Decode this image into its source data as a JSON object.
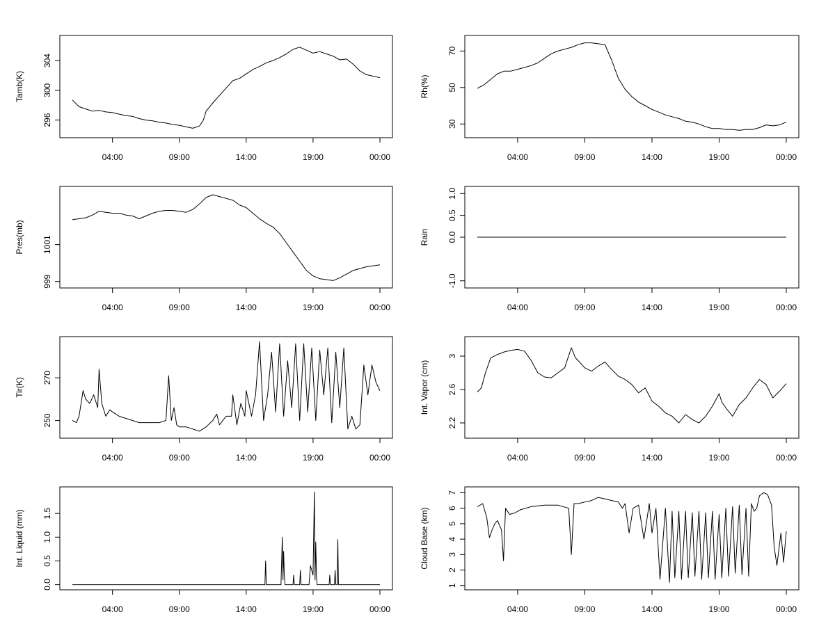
{
  "chart_data": [
    {
      "type": "line",
      "ylabel": "Tamb(K)",
      "xlim": [
        1,
        24
      ],
      "ylim": [
        294,
        307
      ],
      "yticks": [
        296,
        300,
        304
      ],
      "xticks": [
        4,
        9,
        14,
        19,
        24
      ],
      "xticklabels": [
        "04:00",
        "09:00",
        "14:00",
        "19:00",
        "00:00"
      ],
      "x": [
        1.0,
        1.5,
        2.0,
        2.5,
        3.0,
        3.5,
        4.0,
        4.5,
        5.0,
        5.5,
        6.0,
        6.5,
        7.0,
        7.5,
        8.0,
        8.5,
        9.0,
        9.5,
        10.0,
        10.5,
        10.8,
        11.0,
        11.5,
        12.0,
        12.5,
        13.0,
        13.5,
        14.0,
        14.5,
        15.0,
        15.5,
        16.0,
        16.5,
        17.0,
        17.5,
        18.0,
        18.5,
        19.0,
        19.5,
        20.0,
        20.5,
        21.0,
        21.5,
        22.0,
        22.5,
        23.0,
        23.5,
        24.0
      ],
      "y": [
        298.7,
        297.8,
        297.5,
        297.2,
        297.3,
        297.1,
        297.0,
        296.8,
        296.6,
        296.5,
        296.2,
        296.0,
        295.9,
        295.7,
        295.6,
        295.4,
        295.3,
        295.1,
        294.9,
        295.2,
        296.0,
        297.2,
        298.3,
        299.3,
        300.3,
        301.3,
        301.6,
        302.2,
        302.8,
        303.2,
        303.7,
        304.0,
        304.4,
        304.9,
        305.5,
        305.8,
        305.4,
        305.0,
        305.2,
        304.9,
        304.6,
        304.1,
        304.2,
        303.5,
        302.6,
        302.1,
        301.9,
        301.7
      ]
    },
    {
      "type": "line",
      "ylabel": "Rh(%)",
      "xlim": [
        1,
        24
      ],
      "ylim": [
        24,
        77
      ],
      "yticks": [
        30,
        50,
        70
      ],
      "xticks": [
        4,
        9,
        14,
        19,
        24
      ],
      "xticklabels": [
        "04:00",
        "09:00",
        "14:00",
        "19:00",
        "00:00"
      ],
      "x": [
        1.0,
        1.5,
        2.0,
        2.5,
        3.0,
        3.5,
        4.0,
        4.5,
        5.0,
        5.5,
        6.0,
        6.5,
        7.0,
        7.5,
        8.0,
        8.5,
        9.0,
        9.5,
        10.0,
        10.5,
        11.0,
        11.5,
        12.0,
        12.5,
        13.0,
        13.5,
        14.0,
        14.5,
        15.0,
        15.5,
        16.0,
        16.5,
        17.0,
        17.5,
        18.0,
        18.5,
        19.0,
        19.5,
        20.0,
        20.5,
        21.0,
        21.5,
        22.0,
        22.5,
        23.0,
        23.5,
        24.0
      ],
      "y": [
        49.5,
        51.5,
        54.5,
        57.5,
        59.0,
        59.0,
        60.0,
        61.0,
        62.0,
        63.5,
        66.0,
        68.5,
        70.0,
        71.0,
        72.0,
        73.5,
        74.5,
        74.5,
        74.0,
        73.5,
        65.0,
        55.0,
        49.0,
        45.0,
        42.0,
        40.0,
        38.0,
        36.5,
        35.0,
        34.0,
        33.0,
        31.5,
        31.0,
        30.0,
        28.5,
        27.5,
        27.5,
        27.0,
        27.0,
        26.5,
        27.0,
        27.0,
        28.0,
        29.5,
        29.0,
        29.5,
        31.0
      ]
    },
    {
      "type": "line",
      "ylabel": "Pres(mb)",
      "xlim": [
        1,
        24
      ],
      "ylim": [
        998.8,
        1004.0
      ],
      "yticks": [
        999,
        1001
      ],
      "xticks": [
        4,
        9,
        14,
        19,
        24
      ],
      "xticklabels": [
        "04:00",
        "09:00",
        "14:00",
        "19:00",
        "00:00"
      ],
      "x": [
        1.0,
        1.5,
        2.0,
        2.5,
        3.0,
        3.5,
        4.0,
        4.5,
        5.0,
        5.5,
        6.0,
        6.5,
        7.0,
        7.5,
        8.0,
        8.5,
        9.0,
        9.5,
        10.0,
        10.5,
        11.0,
        11.5,
        12.0,
        12.5,
        13.0,
        13.5,
        14.0,
        14.5,
        15.0,
        15.5,
        16.0,
        16.5,
        17.0,
        17.5,
        18.0,
        18.5,
        19.0,
        19.5,
        20.0,
        20.5,
        21.0,
        21.5,
        22.0,
        22.5,
        23.0,
        23.5,
        24.0
      ],
      "y": [
        1002.35,
        1002.4,
        1002.45,
        1002.6,
        1002.8,
        1002.75,
        1002.7,
        1002.7,
        1002.6,
        1002.55,
        1002.4,
        1002.55,
        1002.7,
        1002.8,
        1002.85,
        1002.85,
        1002.8,
        1002.75,
        1002.9,
        1003.2,
        1003.55,
        1003.7,
        1003.6,
        1003.5,
        1003.4,
        1003.15,
        1003.0,
        1002.7,
        1002.4,
        1002.15,
        1001.95,
        1001.6,
        1001.1,
        1000.6,
        1000.1,
        999.6,
        999.3,
        999.15,
        999.1,
        999.05,
        999.2,
        999.4,
        999.6,
        999.7,
        999.8,
        999.85,
        999.9
      ]
    },
    {
      "type": "line",
      "ylabel": "Rain",
      "xlim": [
        1,
        24
      ],
      "ylim": [
        -1.1,
        1.1
      ],
      "yticks": [
        -1.0,
        0.0,
        0.5,
        1.0
      ],
      "yticklabels": [
        "-1.0",
        "0.0",
        "0.5",
        "1.0"
      ],
      "xticks": [
        4,
        9,
        14,
        19,
        24
      ],
      "xticklabels": [
        "04:00",
        "09:00",
        "14:00",
        "19:00",
        "00:00"
      ],
      "x": [
        1.0,
        24.0
      ],
      "y": [
        0.0,
        0.0
      ]
    },
    {
      "type": "line",
      "ylabel": "Tir(K)",
      "xlim": [
        1,
        24
      ],
      "ylim": [
        243,
        288
      ],
      "yticks": [
        250,
        270
      ],
      "xticks": [
        4,
        9,
        14,
        19,
        24
      ],
      "xticklabels": [
        "04:00",
        "09:00",
        "14:00",
        "19:00",
        "00:00"
      ],
      "x": [
        1.0,
        1.3,
        1.5,
        1.8,
        2.0,
        2.3,
        2.6,
        2.9,
        3.0,
        3.2,
        3.5,
        3.8,
        4.0,
        4.5,
        5.0,
        5.5,
        6.0,
        6.5,
        7.0,
        7.5,
        8.0,
        8.2,
        8.4,
        8.6,
        8.8,
        9.0,
        9.5,
        10.0,
        10.5,
        11.0,
        11.5,
        11.8,
        12.0,
        12.5,
        12.9,
        13.0,
        13.3,
        13.6,
        13.9,
        14.0,
        14.4,
        14.7,
        15.0,
        15.3,
        15.6,
        15.9,
        16.2,
        16.5,
        16.8,
        17.1,
        17.4,
        17.7,
        18.0,
        18.3,
        18.6,
        18.9,
        19.2,
        19.5,
        19.8,
        20.1,
        20.4,
        20.7,
        21.0,
        21.3,
        21.6,
        21.9,
        22.2,
        22.5,
        22.8,
        23.1,
        23.4,
        23.7,
        24.0
      ],
      "y": [
        250,
        249,
        252,
        264,
        260,
        258,
        262,
        256,
        274,
        258,
        252,
        255,
        254,
        252,
        251,
        250,
        249,
        249,
        249,
        249,
        250,
        271,
        250,
        256,
        248,
        247,
        247,
        246,
        245,
        247,
        250,
        253,
        248,
        252,
        252,
        262,
        248,
        258,
        252,
        264,
        252,
        262,
        287,
        250,
        262,
        282,
        254,
        286,
        252,
        278,
        256,
        286,
        250,
        286,
        254,
        284,
        250,
        283,
        262,
        284,
        249,
        282,
        256,
        284,
        246,
        252,
        246,
        248,
        276,
        262,
        276,
        268,
        264
      ]
    },
    {
      "type": "line",
      "ylabel": "Int. Vapor (cm)",
      "xlim": [
        1,
        24
      ],
      "ylim": [
        2.05,
        3.2
      ],
      "yticks": [
        2.2,
        2.6,
        3.0
      ],
      "xticks": [
        4,
        9,
        14,
        19,
        24
      ],
      "xticklabels": [
        "04:00",
        "09:00",
        "14:00",
        "19:00",
        "00:00"
      ],
      "x": [
        1.0,
        1.3,
        1.6,
        2.0,
        2.5,
        3.0,
        3.5,
        4.0,
        4.5,
        5.0,
        5.5,
        6.0,
        6.5,
        7.0,
        7.5,
        8.0,
        8.3,
        8.6,
        9.0,
        9.5,
        10.0,
        10.5,
        11.0,
        11.5,
        12.0,
        12.5,
        13.0,
        13.5,
        14.0,
        14.5,
        15.0,
        15.5,
        16.0,
        16.5,
        17.0,
        17.5,
        18.0,
        18.5,
        19.0,
        19.2,
        19.5,
        20.0,
        20.5,
        21.0,
        21.5,
        22.0,
        22.5,
        23.0,
        23.5,
        24.0
      ],
      "y": [
        2.57,
        2.62,
        2.8,
        2.98,
        3.02,
        3.05,
        3.07,
        3.08,
        3.06,
        2.95,
        2.8,
        2.75,
        2.74,
        2.8,
        2.86,
        3.1,
        2.98,
        2.93,
        2.86,
        2.82,
        2.88,
        2.93,
        2.84,
        2.76,
        2.72,
        2.66,
        2.56,
        2.62,
        2.46,
        2.4,
        2.32,
        2.28,
        2.2,
        2.3,
        2.24,
        2.2,
        2.28,
        2.4,
        2.55,
        2.45,
        2.38,
        2.28,
        2.42,
        2.5,
        2.62,
        2.72,
        2.66,
        2.5,
        2.58,
        2.67
      ]
    },
    {
      "type": "line",
      "ylabel": "Int. Liquid (mm)",
      "xlim": [
        1,
        24
      ],
      "ylim": [
        -0.05,
        2.0
      ],
      "yticks": [
        0.0,
        0.5,
        1.0,
        1.5
      ],
      "yticklabels": [
        "0.0",
        "0.5",
        "1.0",
        "1.5"
      ],
      "xticks": [
        4,
        9,
        14,
        19,
        24
      ],
      "xticklabels": [
        "04:00",
        "09:00",
        "14:00",
        "19:00",
        "00:00"
      ],
      "x": [
        1.0,
        15.4,
        15.45,
        15.5,
        16.6,
        16.7,
        16.75,
        16.8,
        16.85,
        16.9,
        17.5,
        17.55,
        17.6,
        18.0,
        18.05,
        18.1,
        18.7,
        18.8,
        19.0,
        19.1,
        19.15,
        19.2,
        19.25,
        19.3,
        20.2,
        20.25,
        20.3,
        20.6,
        20.65,
        20.7,
        20.8,
        20.85,
        20.9,
        24.0
      ],
      "y": [
        0.0,
        0.0,
        0.5,
        0.0,
        0.0,
        1.0,
        0.1,
        0.7,
        0.2,
        0.0,
        0.0,
        0.2,
        0.0,
        0.0,
        0.3,
        0.0,
        0.0,
        0.4,
        0.2,
        1.95,
        0.1,
        0.9,
        0.2,
        0.0,
        0.0,
        0.2,
        0.0,
        0.0,
        0.3,
        0.0,
        0.0,
        0.95,
        0.0,
        0.0
      ]
    },
    {
      "type": "line",
      "ylabel": "Cloud Base (km)",
      "xlim": [
        1,
        24
      ],
      "ylim": [
        0.9,
        7.2
      ],
      "yticks": [
        1,
        2,
        3,
        4,
        5,
        6,
        7
      ],
      "xticks": [
        4,
        9,
        14,
        19,
        24
      ],
      "xticklabels": [
        "04:00",
        "09:00",
        "14:00",
        "19:00",
        "00:00"
      ],
      "x": [
        1.0,
        1.4,
        1.7,
        1.9,
        2.1,
        2.3,
        2.5,
        2.8,
        2.95,
        3.1,
        3.4,
        3.8,
        4.2,
        5.0,
        6.0,
        7.0,
        7.8,
        8.0,
        8.2,
        8.5,
        9.0,
        9.5,
        10.0,
        10.5,
        11.0,
        11.5,
        11.8,
        12.0,
        12.3,
        12.6,
        13.0,
        13.4,
        13.8,
        14.0,
        14.3,
        14.6,
        15.0,
        15.3,
        15.5,
        15.7,
        16.0,
        16.2,
        16.5,
        16.7,
        17.0,
        17.2,
        17.5,
        17.7,
        18.0,
        18.2,
        18.5,
        18.7,
        19.0,
        19.2,
        19.5,
        19.7,
        20.0,
        20.2,
        20.5,
        20.7,
        21.0,
        21.2,
        21.4,
        21.6,
        21.8,
        22.0,
        22.3,
        22.6,
        22.9,
        23.1,
        23.3,
        23.6,
        23.8,
        24.0
      ],
      "y": [
        6.1,
        6.3,
        5.4,
        4.1,
        4.6,
        5.0,
        5.2,
        4.6,
        2.6,
        6.0,
        5.6,
        5.7,
        5.9,
        6.1,
        6.2,
        6.2,
        6.0,
        3.0,
        6.3,
        6.3,
        6.4,
        6.5,
        6.7,
        6.6,
        6.5,
        6.4,
        6.0,
        6.3,
        4.4,
        6.0,
        6.2,
        4.0,
        6.3,
        4.4,
        6.0,
        1.4,
        6.0,
        1.2,
        5.8,
        1.5,
        5.8,
        1.4,
        5.8,
        1.5,
        5.7,
        1.6,
        5.8,
        1.4,
        5.7,
        1.5,
        5.8,
        1.4,
        5.6,
        1.5,
        6.0,
        1.6,
        6.1,
        1.8,
        6.2,
        1.7,
        6.0,
        1.6,
        6.3,
        5.8,
        6.0,
        6.8,
        7.0,
        6.9,
        6.2,
        3.5,
        2.3,
        4.4,
        2.5,
        4.5
      ]
    }
  ]
}
